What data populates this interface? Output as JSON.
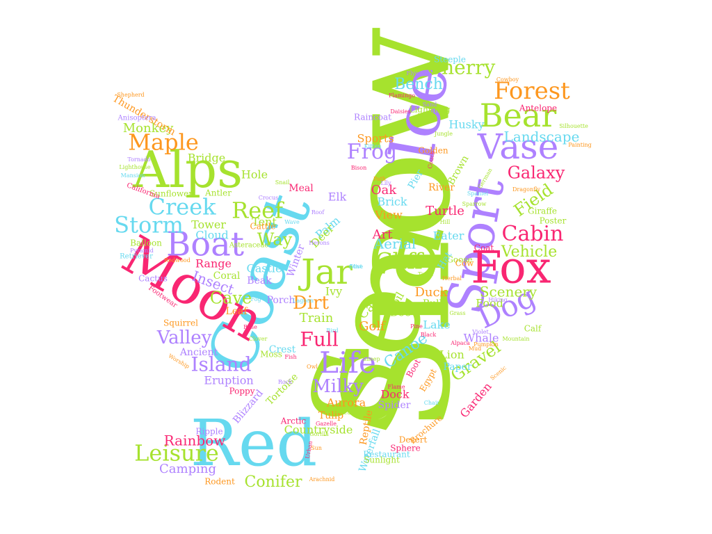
{
  "palette": {
    "green": "#a6e22e",
    "cyan": "#66d9ef",
    "pink": "#f92672",
    "purple": "#ae81ff",
    "orange": "#fd971f"
  },
  "words": [
    {
      "text": "Snow",
      "color": "green",
      "weight": 1.0
    },
    {
      "text": "Sea",
      "color": "green",
      "weight": 0.95
    },
    {
      "text": "Coast",
      "color": "cyan",
      "weight": 0.55
    },
    {
      "text": "Red",
      "color": "cyan",
      "weight": 0.5
    },
    {
      "text": "Ice",
      "color": "purple",
      "weight": 0.45
    },
    {
      "text": "Moon",
      "color": "pink",
      "weight": 0.4
    },
    {
      "text": "Alps",
      "color": "green",
      "weight": 0.38
    },
    {
      "text": "Sport",
      "color": "purple",
      "weight": 0.35
    },
    {
      "text": "Fox",
      "color": "pink",
      "weight": 0.33
    },
    {
      "text": "Vase",
      "color": "purple",
      "weight": 0.28
    },
    {
      "text": "Bear",
      "color": "green",
      "weight": 0.27
    },
    {
      "text": "Jar",
      "color": "green",
      "weight": 0.26
    },
    {
      "text": "Boat",
      "color": "purple",
      "weight": 0.26
    },
    {
      "text": "Dog",
      "color": "purple",
      "weight": 0.24
    },
    {
      "text": "Life",
      "color": "purple",
      "weight": 0.23
    },
    {
      "text": "Forest",
      "color": "orange",
      "weight": 0.22
    },
    {
      "text": "Cherry",
      "color": "green",
      "weight": 0.21
    },
    {
      "text": "Maple",
      "color": "orange",
      "weight": 0.21
    },
    {
      "text": "Creek",
      "color": "cyan",
      "weight": 0.21
    },
    {
      "text": "Storm",
      "color": "cyan",
      "weight": 0.21
    },
    {
      "text": "Reef",
      "color": "green",
      "weight": 0.2
    },
    {
      "text": "Cliff",
      "color": "green",
      "weight": 0.2
    },
    {
      "text": "Cabin",
      "color": "pink",
      "weight": 0.2
    },
    {
      "text": "Leisure",
      "color": "green",
      "weight": 0.2
    },
    {
      "text": "Frog",
      "color": "purple",
      "weight": 0.19
    },
    {
      "text": "Valley",
      "color": "purple",
      "weight": 0.18
    },
    {
      "text": "Island",
      "color": "purple",
      "weight": 0.18
    },
    {
      "text": "Full",
      "color": "pink",
      "weight": 0.18
    },
    {
      "text": "Milky",
      "color": "purple",
      "weight": 0.17
    },
    {
      "text": "Galaxy",
      "color": "pink",
      "weight": 0.17
    },
    {
      "text": "Field",
      "color": "green",
      "weight": 0.17
    },
    {
      "text": "Gravel",
      "color": "green",
      "weight": 0.17
    },
    {
      "text": "Way",
      "color": "green",
      "weight": 0.16
    },
    {
      "text": "Cave",
      "color": "green",
      "weight": 0.16
    },
    {
      "text": "Dirt",
      "color": "orange",
      "weight": 0.16
    },
    {
      "text": "Canoe",
      "color": "cyan",
      "weight": 0.16
    },
    {
      "text": "Bench",
      "color": "cyan",
      "weight": 0.15
    },
    {
      "text": "Vehicle",
      "color": "green",
      "weight": 0.15
    },
    {
      "text": "Rainbow",
      "color": "pink",
      "weight": 0.15
    },
    {
      "text": "Conifer",
      "color": "green",
      "weight": 0.15
    },
    {
      "text": "Landscape",
      "color": "cyan",
      "weight": 0.14
    },
    {
      "text": "Scenery",
      "color": "green",
      "weight": 0.14
    },
    {
      "text": "Insect",
      "color": "purple",
      "weight": 0.14
    },
    {
      "text": "Aerial",
      "color": "cyan",
      "weight": 0.14
    },
    {
      "text": "Monkey",
      "color": "green",
      "weight": 0.13
    },
    {
      "text": "Camping",
      "color": "purple",
      "weight": 0.13
    },
    {
      "text": "Aurora",
      "color": "orange",
      "weight": 0.12
    },
    {
      "text": "Golf",
      "color": "orange",
      "weight": 0.12
    },
    {
      "text": "Art",
      "color": "pink",
      "weight": 0.12
    },
    {
      "text": "Brick",
      "color": "cyan",
      "weight": 0.12
    },
    {
      "text": "View",
      "color": "orange",
      "weight": 0.12
    },
    {
      "text": "Oak",
      "color": "pink",
      "weight": 0.12
    },
    {
      "text": "Turtle",
      "color": "pink",
      "weight": 0.12
    },
    {
      "text": "Train",
      "color": "green",
      "weight": 0.11
    },
    {
      "text": "Duck",
      "color": "orange",
      "weight": 0.11
    },
    {
      "text": "Lion",
      "color": "green",
      "weight": 0.11
    },
    {
      "text": "Whale",
      "color": "purple",
      "weight": 0.11
    },
    {
      "text": "Garden",
      "color": "pink",
      "weight": 0.11
    },
    {
      "text": "Eruption",
      "color": "purple",
      "weight": 0.11
    },
    {
      "text": "Tent",
      "color": "green",
      "weight": 0.1
    },
    {
      "text": "Hole",
      "color": "green",
      "weight": 0.1
    },
    {
      "text": "Castle",
      "color": "cyan",
      "weight": 0.1
    },
    {
      "text": "Range",
      "color": "pink",
      "weight": 0.1
    },
    {
      "text": "Tower",
      "color": "green",
      "weight": 0.1
    },
    {
      "text": "Cloud",
      "color": "cyan",
      "weight": 0.1
    },
    {
      "text": "Bridge",
      "color": "green",
      "weight": 0.1
    },
    {
      "text": "Ancient",
      "color": "purple",
      "weight": 0.1
    },
    {
      "text": "Crest",
      "color": "cyan",
      "weight": 0.1
    },
    {
      "text": "Elk",
      "color": "purple",
      "weight": 0.1
    },
    {
      "text": "Palm",
      "color": "cyan",
      "weight": 0.1
    },
    {
      "text": "Deer",
      "color": "green",
      "weight": 0.1
    },
    {
      "text": "Pier",
      "color": "cyan",
      "weight": 0.1
    },
    {
      "text": "River",
      "color": "orange",
      "weight": 0.1
    },
    {
      "text": "Brown",
      "color": "green",
      "weight": 0.1
    },
    {
      "text": "Husky",
      "color": "cyan",
      "weight": 0.1
    },
    {
      "text": "Sports",
      "color": "orange",
      "weight": 0.1
    },
    {
      "text": "Eater",
      "color": "cyan",
      "weight": 0.1
    },
    {
      "text": "Hat",
      "color": "cyan",
      "weight": 0.1
    },
    {
      "text": "Food",
      "color": "green",
      "weight": 0.1
    },
    {
      "text": "Lake",
      "color": "cyan",
      "weight": 0.1
    },
    {
      "text": "Bee",
      "color": "green",
      "weight": 0.1
    },
    {
      "text": "Cat",
      "color": "green",
      "weight": 0.1
    },
    {
      "text": "Soil",
      "color": "green",
      "weight": 0.1
    },
    {
      "text": "Ivy",
      "color": "green",
      "weight": 0.1
    },
    {
      "text": "Paper",
      "color": "cyan",
      "weight": 0.09
    },
    {
      "text": "Dock",
      "color": "pink",
      "weight": 0.09
    },
    {
      "text": "Spider",
      "color": "purple",
      "weight": 0.09
    },
    {
      "text": "Tulip",
      "color": "orange",
      "weight": 0.09
    },
    {
      "text": "Countryside",
      "color": "green",
      "weight": 0.09
    },
    {
      "text": "Reptile",
      "color": "orange",
      "weight": 0.09
    },
    {
      "text": "Waterfall",
      "color": "cyan",
      "weight": 0.09
    },
    {
      "text": "Tortoise",
      "color": "green",
      "weight": 0.08
    },
    {
      "text": "Blizzard",
      "color": "purple",
      "weight": 0.08
    },
    {
      "text": "Winter",
      "color": "purple",
      "weight": 0.08
    },
    {
      "text": "Porch",
      "color": "purple",
      "weight": 0.08
    },
    {
      "text": "Leaf",
      "color": "orange",
      "weight": 0.08
    },
    {
      "text": "Coral",
      "color": "green",
      "weight": 0.08
    },
    {
      "text": "Beak",
      "color": "purple",
      "weight": 0.08
    },
    {
      "text": "Cattle",
      "color": "orange",
      "weight": 0.08
    },
    {
      "text": "Meal",
      "color": "pink",
      "weight": 0.08
    },
    {
      "text": "Antler",
      "color": "green",
      "weight": 0.08
    },
    {
      "text": "Pool",
      "color": "green",
      "weight": 0.08
    },
    {
      "text": "Moss",
      "color": "green",
      "weight": 0.08
    },
    {
      "text": "Boot",
      "color": "pink",
      "weight": 0.08
    },
    {
      "text": "Egypt",
      "color": "orange",
      "weight": 0.08
    },
    {
      "text": "Bull",
      "color": "green",
      "weight": 0.08
    },
    {
      "text": "Coat",
      "color": "pink",
      "weight": 0.08
    },
    {
      "text": "Goose",
      "color": "green",
      "weight": 0.08
    },
    {
      "text": "Cow",
      "color": "orange",
      "weight": 0.08
    },
    {
      "text": "Calf",
      "color": "green",
      "weight": 0.08
    },
    {
      "text": "Poster",
      "color": "green",
      "weight": 0.08
    },
    {
      "text": "Giraffe",
      "color": "green",
      "weight": 0.08
    },
    {
      "text": "Antelope",
      "color": "pink",
      "weight": 0.07
    },
    {
      "text": "Steeple",
      "color": "cyan",
      "weight": 0.07
    },
    {
      "text": "Thunderstorm",
      "color": "orange",
      "weight": 0.07
    },
    {
      "text": "Sunflower",
      "color": "green",
      "weight": 0.07
    },
    {
      "text": "Raincoat",
      "color": "purple",
      "weight": 0.07
    },
    {
      "text": "Lightning",
      "color": "green",
      "weight": 0.07
    },
    {
      "text": "Golden",
      "color": "orange",
      "weight": 0.07
    },
    {
      "text": "Desert",
      "color": "orange",
      "weight": 0.07
    },
    {
      "text": "Arctic",
      "color": "pink",
      "weight": 0.07
    },
    {
      "text": "Ripple",
      "color": "purple",
      "weight": 0.07
    },
    {
      "text": "Rodent",
      "color": "orange",
      "weight": 0.07
    },
    {
      "text": "Brochure",
      "color": "orange",
      "weight": 0.07
    },
    {
      "text": "Restaurant",
      "color": "cyan",
      "weight": 0.06
    },
    {
      "text": "Sunlight",
      "color": "green",
      "weight": 0.06
    },
    {
      "text": "Sphere",
      "color": "pink",
      "weight": 0.06
    },
    {
      "text": "Poppy",
      "color": "pink",
      "weight": 0.06
    },
    {
      "text": "Cactus",
      "color": "purple",
      "weight": 0.06
    },
    {
      "text": "Balloon",
      "color": "green",
      "weight": 0.06
    },
    {
      "text": "Squirrel",
      "color": "orange",
      "weight": 0.06
    },
    {
      "text": "Anisoptera",
      "color": "purple",
      "weight": 0.06
    },
    {
      "text": "Retriever",
      "color": "cyan",
      "weight": 0.06
    },
    {
      "text": "Asteraceae",
      "color": "green",
      "weight": 0.06
    },
    {
      "text": "Footwear",
      "color": "pink",
      "weight": 0.06
    },
    {
      "text": "Flyer",
      "color": "purple",
      "weight": 0.06
    },
    {
      "text": "Cowboy",
      "color": "orange",
      "weight": 0.06
    },
    {
      "text": "Silhouette",
      "color": "green",
      "weight": 0.05
    },
    {
      "text": "Painting",
      "color": "orange",
      "weight": 0.05
    },
    {
      "text": "Shepherd",
      "color": "orange",
      "weight": 0.05
    },
    {
      "text": "Tornado",
      "color": "purple",
      "weight": 0.05
    },
    {
      "text": "Lighthouse",
      "color": "green",
      "weight": 0.05
    },
    {
      "text": "Mansion",
      "color": "cyan",
      "weight": 0.05
    },
    {
      "text": "California",
      "color": "pink",
      "weight": 0.05
    },
    {
      "text": "Pyramid",
      "color": "purple",
      "weight": 0.05
    },
    {
      "text": "Redwood",
      "color": "orange",
      "weight": 0.05
    },
    {
      "text": "Worship",
      "color": "orange",
      "weight": 0.05
    },
    {
      "text": "German",
      "color": "green",
      "weight": 0.05
    },
    {
      "text": "Spaniel",
      "color": "cyan",
      "weight": 0.05
    },
    {
      "text": "Scenic",
      "color": "orange",
      "weight": 0.05
    },
    {
      "text": "Dragonfly",
      "color": "orange",
      "weight": 0.05
    },
    {
      "text": "Daisies",
      "color": "pink",
      "weight": 0.05
    },
    {
      "text": "Flamingo",
      "color": "pink",
      "weight": 0.05
    },
    {
      "text": "Arachnid",
      "color": "orange",
      "weight": 0.05
    },
    {
      "text": "Urban",
      "color": "pink",
      "weight": 0.05
    },
    {
      "text": "Gazelle",
      "color": "pink",
      "weight": 0.05
    },
    {
      "text": "Sculpture",
      "color": "green",
      "weight": 0.05
    },
    {
      "text": "Gorilla",
      "color": "green",
      "weight": 0.05
    },
    {
      "text": "Sparrow",
      "color": "green",
      "weight": 0.05
    },
    {
      "text": "Jungle",
      "color": "green",
      "weight": 0.05
    },
    {
      "text": "Mountain",
      "color": "green",
      "weight": 0.05
    },
    {
      "text": "Flame",
      "color": "pink",
      "weight": 0.05
    },
    {
      "text": "Couch",
      "color": "pink",
      "weight": 0.05
    },
    {
      "text": "Crocus",
      "color": "purple",
      "weight": 0.05
    },
    {
      "text": "Herons",
      "color": "purple",
      "weight": 0.05
    },
    {
      "text": "Lagoon",
      "color": "cyan",
      "weight": 0.05
    },
    {
      "text": "Sun",
      "color": "orange",
      "weight": 0.05
    },
    {
      "text": "Fog",
      "color": "cyan",
      "weight": 0.05
    },
    {
      "text": "Roof",
      "color": "purple",
      "weight": 0.05
    },
    {
      "text": "Bison",
      "color": "pink",
      "weight": 0.05
    },
    {
      "text": "Fish",
      "color": "pink",
      "weight": 0.05
    },
    {
      "text": "Kitten",
      "color": "cyan",
      "weight": 0.05
    },
    {
      "text": "Sheep",
      "color": "green",
      "weight": 0.05
    },
    {
      "text": "Chair",
      "color": "cyan",
      "weight": 0.05
    },
    {
      "text": "Sand",
      "color": "purple",
      "weight": 0.05
    },
    {
      "text": "Mud",
      "color": "orange",
      "weight": 0.05
    },
    {
      "text": "Black",
      "color": "pink",
      "weight": 0.05
    },
    {
      "text": "Alpaca",
      "color": "pink",
      "weight": 0.05
    },
    {
      "text": "Pumpkin",
      "color": "orange",
      "weight": 0.05
    },
    {
      "text": "Grass",
      "color": "green",
      "weight": 0.05
    },
    {
      "text": "Hiking",
      "color": "purple",
      "weight": 0.05
    },
    {
      "text": "Violet",
      "color": "purple",
      "weight": 0.05
    },
    {
      "text": "Herbal",
      "color": "orange",
      "weight": 0.05
    },
    {
      "text": "Taiga",
      "color": "green",
      "weight": 0.05
    },
    {
      "text": "Pine",
      "color": "pink",
      "weight": 0.05
    },
    {
      "text": "Bird",
      "color": "cyan",
      "weight": 0.05
    },
    {
      "text": "Owl",
      "color": "orange",
      "weight": 0.05
    },
    {
      "text": "Rock",
      "color": "purple",
      "weight": 0.05
    },
    {
      "text": "Wave",
      "color": "cyan",
      "weight": 0.05
    },
    {
      "text": "Snail",
      "color": "green",
      "weight": 0.05
    },
    {
      "text": "Clover",
      "color": "green",
      "weight": 0.05
    },
    {
      "text": "Rose",
      "color": "pink",
      "weight": 0.05
    },
    {
      "text": "Lily",
      "color": "purple",
      "weight": 0.05
    },
    {
      "text": "Path",
      "color": "orange",
      "weight": 0.05
    },
    {
      "text": "Hill",
      "color": "green",
      "weight": 0.05
    },
    {
      "text": "Mist",
      "color": "cyan",
      "weight": 0.05
    },
    {
      "text": "Cove",
      "color": "cyan",
      "weight": 0.05
    }
  ]
}
